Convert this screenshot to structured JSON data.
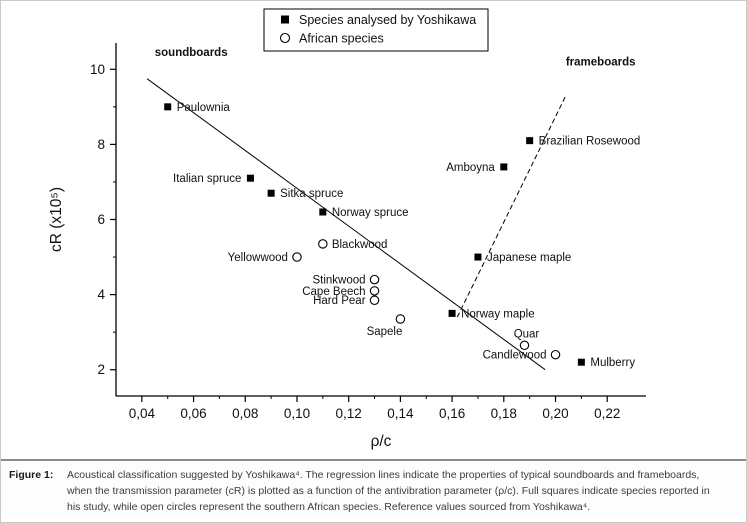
{
  "figure": {
    "caption_label": "Figure 1:",
    "caption_text": "Acoustical classification suggested by Yoshikawa⁴. The regression lines indicate the properties of typical soundboards and frameboards, when the transmission parameter (cR) is plotted as a function of the antivibration parameter (ρ/c). Full squares indicate species reported in his study, while open circles represent the southern African species. Reference values sourced from Yoshikawa⁴."
  },
  "chart_data": {
    "type": "scatter",
    "title": "",
    "xlabel": "ρ/c",
    "ylabel": "cR (x10⁵)",
    "xlim": [
      0.03,
      0.235
    ],
    "ylim": [
      1.3,
      10.7
    ],
    "grid": false,
    "legend_position": "top-center",
    "axis_color": "#000000",
    "xticks": [
      {
        "v": 0.04,
        "label": "0,04"
      },
      {
        "v": 0.06,
        "label": "0,06"
      },
      {
        "v": 0.08,
        "label": "0,08"
      },
      {
        "v": 0.1,
        "label": "0,10"
      },
      {
        "v": 0.12,
        "label": "0,12"
      },
      {
        "v": 0.14,
        "label": "0,14"
      },
      {
        "v": 0.16,
        "label": "0,16"
      },
      {
        "v": 0.18,
        "label": "0,18"
      },
      {
        "v": 0.2,
        "label": "0,20"
      },
      {
        "v": 0.22,
        "label": "0,22"
      }
    ],
    "xminor": [
      0.05,
      0.07,
      0.09,
      0.11,
      0.13,
      0.15,
      0.17,
      0.19,
      0.21
    ],
    "yticks": [
      {
        "v": 2,
        "label": "2"
      },
      {
        "v": 4,
        "label": "4"
      },
      {
        "v": 6,
        "label": "6"
      },
      {
        "v": 8,
        "label": "8"
      },
      {
        "v": 10,
        "label": "10"
      }
    ],
    "yminor": [
      3,
      5,
      7,
      9
    ],
    "legend": {
      "entries": [
        {
          "marker": "filled-square",
          "label": "Species analysed by Yoshikawa"
        },
        {
          "marker": "open-circle",
          "label": "African species"
        }
      ]
    },
    "series": [
      {
        "name": "Species analysed by Yoshikawa",
        "marker": "filled-square",
        "points": [
          {
            "label": "Paulownia",
            "x": 0.05,
            "y": 9.0,
            "anchor": "right"
          },
          {
            "label": "Italian spruce",
            "x": 0.082,
            "y": 7.1,
            "anchor": "left"
          },
          {
            "label": "Sitka spruce",
            "x": 0.09,
            "y": 6.7,
            "anchor": "right"
          },
          {
            "label": "Norway spruce",
            "x": 0.11,
            "y": 6.2,
            "anchor": "right"
          },
          {
            "label": "Amboyna",
            "x": 0.18,
            "y": 7.4,
            "anchor": "left"
          },
          {
            "label": "Brazilian Rosewood",
            "x": 0.19,
            "y": 8.1,
            "anchor": "right"
          },
          {
            "label": "Japanese maple",
            "x": 0.17,
            "y": 5.0,
            "anchor": "right"
          },
          {
            "label": "Norway maple",
            "x": 0.16,
            "y": 3.5,
            "anchor": "right"
          },
          {
            "label": "Mulberry",
            "x": 0.21,
            "y": 2.2,
            "anchor": "right"
          }
        ]
      },
      {
        "name": "African species",
        "marker": "open-circle",
        "points": [
          {
            "label": "Blackwood",
            "x": 0.11,
            "y": 5.35,
            "anchor": "right"
          },
          {
            "label": "Yellowwood",
            "x": 0.1,
            "y": 5.0,
            "anchor": "left"
          },
          {
            "label": "Stinkwood",
            "x": 0.13,
            "y": 4.4,
            "anchor": "left"
          },
          {
            "label": "Cape Beech",
            "x": 0.13,
            "y": 4.1,
            "anchor": "left"
          },
          {
            "label": "Hard Pear",
            "x": 0.13,
            "y": 3.85,
            "anchor": "left"
          },
          {
            "label": "Sapele",
            "x": 0.14,
            "y": 3.35,
            "anchor": "below-left"
          },
          {
            "label": "Quar",
            "x": 0.188,
            "y": 2.65,
            "anchor": "above"
          },
          {
            "label": "Candlewood",
            "x": 0.2,
            "y": 2.4,
            "anchor": "left"
          }
        ]
      }
    ],
    "lines": [
      {
        "name": "soundboards-regression",
        "style": "solid",
        "x1": 0.042,
        "y1": 9.75,
        "x2": 0.196,
        "y2": 2.0
      },
      {
        "name": "frameboards-regression",
        "style": "dashed",
        "x1": 0.162,
        "y1": 3.4,
        "x2": 0.204,
        "y2": 9.3
      }
    ],
    "annotations": [
      {
        "text": "soundboards",
        "x": 0.045,
        "y": 10.35,
        "anchor": "start"
      },
      {
        "text": "frameboards",
        "x": 0.204,
        "y": 10.1,
        "anchor": "start"
      }
    ]
  }
}
